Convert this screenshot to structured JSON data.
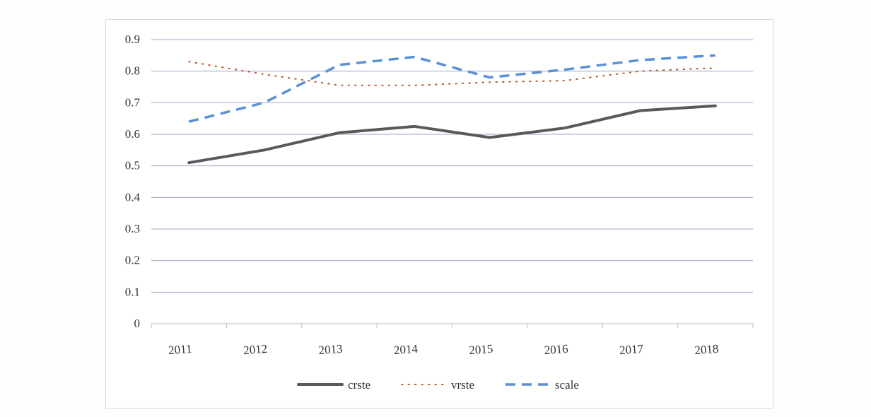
{
  "chart_data": {
    "type": "line",
    "title": "",
    "xlabel": "",
    "ylabel": "",
    "categories": [
      "2011",
      "2012",
      "2013",
      "2014",
      "2015",
      "2016",
      "2017",
      "2018"
    ],
    "ylim": [
      0,
      0.9
    ],
    "yticks": [
      "0",
      "0.1",
      "0.2",
      "0.3",
      "0.4",
      "0.5",
      "0.6",
      "0.7",
      "0.8",
      "0.9"
    ],
    "grid": true,
    "legend_position": "bottom",
    "series": [
      {
        "name": "crste",
        "values": [
          0.51,
          0.55,
          0.605,
          0.625,
          0.59,
          0.62,
          0.675,
          0.69
        ],
        "color": "#595959",
        "style": "solid"
      },
      {
        "name": "vrste",
        "values": [
          0.83,
          0.79,
          0.755,
          0.755,
          0.765,
          0.77,
          0.8,
          0.81
        ],
        "color": "#b55a2a",
        "style": "dotted"
      },
      {
        "name": "scale",
        "values": [
          0.64,
          0.7,
          0.82,
          0.845,
          0.78,
          0.805,
          0.835,
          0.85
        ],
        "color": "#5b8fd6",
        "style": "dashed"
      }
    ]
  }
}
